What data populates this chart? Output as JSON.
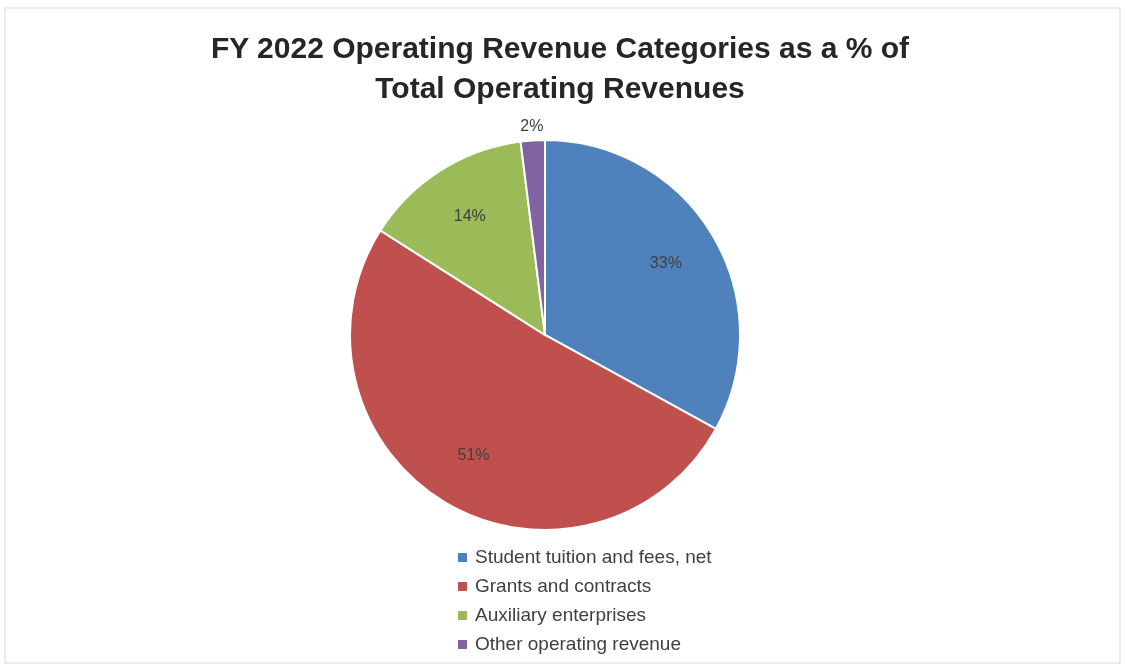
{
  "chart_data": {
    "type": "pie",
    "title": "FY 2022 Operating Revenue Categories as a % of Total Operating Revenues",
    "categories": [
      "Student tuition and fees, net",
      "Grants and contracts",
      "Auxiliary enterprises",
      "Other operating revenue"
    ],
    "values": [
      33,
      51,
      14,
      2
    ],
    "colors": [
      "#4f81bd",
      "#c0504d",
      "#9bbb59",
      "#8064a2"
    ],
    "value_labels": [
      "33%",
      "51%",
      "14%",
      "2%"
    ],
    "legend": "bottom"
  }
}
